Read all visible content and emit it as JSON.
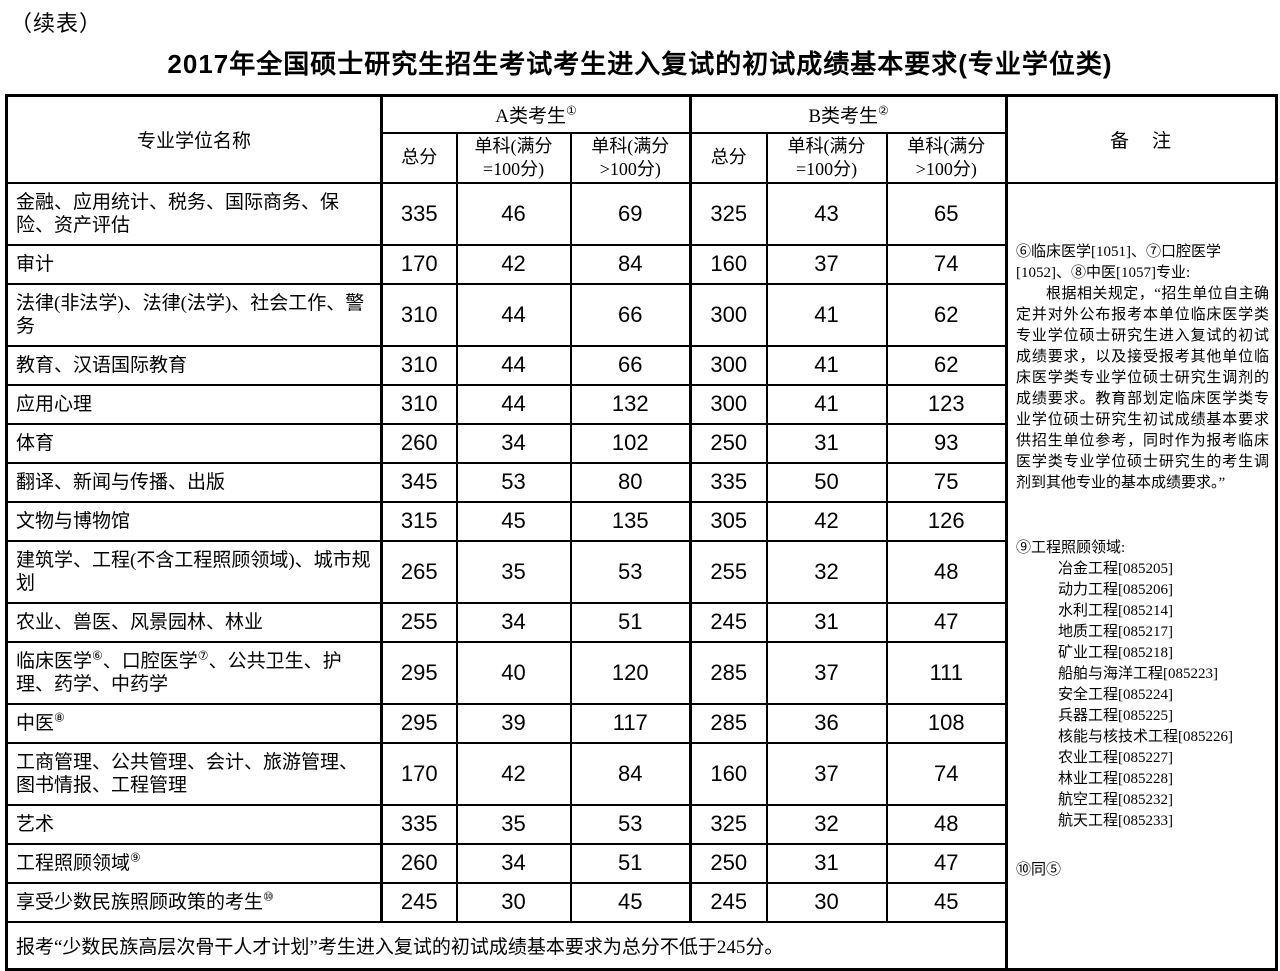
{
  "page": {
    "continued_label": "（续表）",
    "title": "2017年全国硕士研究生招生考试考生进入复试的初试成绩基本要求(专业学位类)"
  },
  "table": {
    "name_header": "专业学位名称",
    "group_a_header": "A类考生①",
    "group_b_header": "B类考生②",
    "sub_headers": [
      "总分",
      "单科(满分\n=100分)",
      "单科(满分\n>100分)"
    ],
    "remarks_header": "备　注",
    "rows": [
      {
        "name": "金融、应用统计、税务、国际商务、保险、资产评估",
        "a": [
          "335",
          "46",
          "69"
        ],
        "b": [
          "325",
          "43",
          "65"
        ]
      },
      {
        "name": "审计",
        "a": [
          "170",
          "42",
          "84"
        ],
        "b": [
          "160",
          "37",
          "74"
        ]
      },
      {
        "name": "法律(非法学)、法律(法学)、社会工作、警务",
        "a": [
          "310",
          "44",
          "66"
        ],
        "b": [
          "300",
          "41",
          "62"
        ]
      },
      {
        "name": "教育、汉语国际教育",
        "a": [
          "310",
          "44",
          "66"
        ],
        "b": [
          "300",
          "41",
          "62"
        ]
      },
      {
        "name": "应用心理",
        "a": [
          "310",
          "44",
          "132"
        ],
        "b": [
          "300",
          "41",
          "123"
        ]
      },
      {
        "name": "体育",
        "a": [
          "260",
          "34",
          "102"
        ],
        "b": [
          "250",
          "31",
          "93"
        ]
      },
      {
        "name": "翻译、新闻与传播、出版",
        "a": [
          "345",
          "53",
          "80"
        ],
        "b": [
          "335",
          "50",
          "75"
        ]
      },
      {
        "name": "文物与博物馆",
        "a": [
          "315",
          "45",
          "135"
        ],
        "b": [
          "305",
          "42",
          "126"
        ]
      },
      {
        "name": "建筑学、工程(不含工程照顾领域)、城市规划",
        "a": [
          "265",
          "35",
          "53"
        ],
        "b": [
          "255",
          "32",
          "48"
        ]
      },
      {
        "name": "农业、兽医、风景园林、林业",
        "a": [
          "255",
          "34",
          "51"
        ],
        "b": [
          "245",
          "31",
          "47"
        ]
      },
      {
        "name": "临床医学⑥、口腔医学⑦、公共卫生、护理、药学、中药学",
        "a": [
          "295",
          "40",
          "120"
        ],
        "b": [
          "285",
          "37",
          "111"
        ]
      },
      {
        "name": "中医⑧",
        "a": [
          "295",
          "39",
          "117"
        ],
        "b": [
          "285",
          "36",
          "108"
        ]
      },
      {
        "name": "工商管理、公共管理、会计、旅游管理、图书情报、工程管理",
        "a": [
          "170",
          "42",
          "84"
        ],
        "b": [
          "160",
          "37",
          "74"
        ]
      },
      {
        "name": "艺术",
        "a": [
          "335",
          "35",
          "53"
        ],
        "b": [
          "325",
          "32",
          "48"
        ]
      },
      {
        "name": "工程照顾领域⑨",
        "a": [
          "260",
          "34",
          "51"
        ],
        "b": [
          "250",
          "31",
          "47"
        ]
      },
      {
        "name": "享受少数民族照顾政策的考生⑩",
        "a": [
          "245",
          "30",
          "45"
        ],
        "b": [
          "245",
          "30",
          "45"
        ]
      }
    ],
    "footer": "报考“少数民族高层次骨干人才计划”考生进入复试的初试成绩基本要求为总分不低于245分。",
    "remarks": {
      "block1_title": "⑥临床医学[1051]、⑦口腔医学[1052]、⑧中医[1057]专业:",
      "block1_body": "根据相关规定，“招生单位自主确定并对外公布报考本单位临床医学类专业学位硕士研究生进入复试的初试成绩要求，以及接受报考其他单位临床医学类专业学位硕士研究生调剂的成绩要求。教育部划定临床医学类专业学位硕士研究生初试成绩基本要求供招生单位参考，同时作为报考临床医学类专业学位硕士研究生的考生调剂到其他专业的基本成绩要求。”",
      "block2_title": "⑨工程照顾领域:",
      "block2_items": [
        "冶金工程[085205]",
        "动力工程[085206]",
        "水利工程[085214]",
        "地质工程[085217]",
        "矿业工程[085218]",
        "船舶与海洋工程[085223]",
        "安全工程[085224]",
        "兵器工程[085225]",
        "核能与核技术工程[085226]",
        "农业工程[085227]",
        "林业工程[085228]",
        "航空工程[085232]",
        "航天工程[085233]"
      ],
      "block3": "⑩同⑤"
    }
  }
}
